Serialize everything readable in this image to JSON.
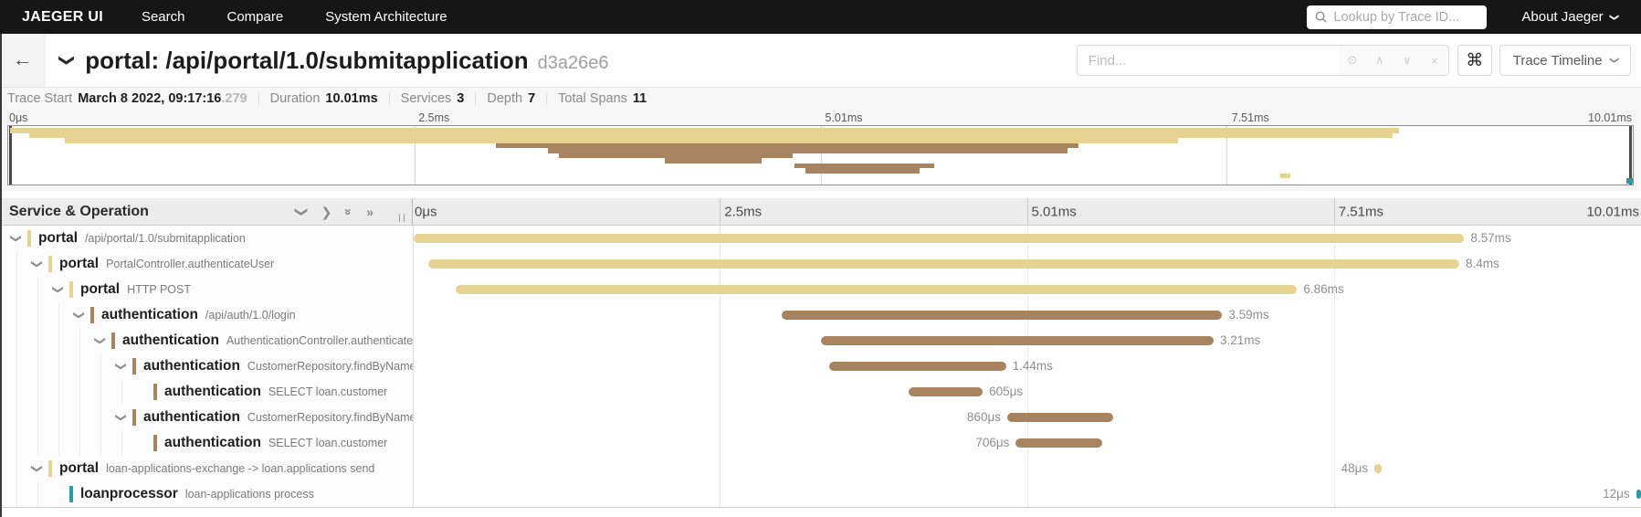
{
  "nav": {
    "brand": "JAEGER UI",
    "items": [
      "Search",
      "Compare",
      "System Architecture"
    ],
    "lookup_placeholder": "Lookup by Trace ID...",
    "about_label": "About Jaeger"
  },
  "header": {
    "title": "portal: /api/portal/1.0/submitapplication",
    "trace_id": "d3a26e6",
    "find_placeholder": "Find...",
    "shortcut_glyph": "⌘",
    "view_select_label": "Trace Timeline"
  },
  "summary": {
    "trace_start_label": "Trace Start",
    "trace_start_value": "March 8 2022, 09:17:16",
    "trace_start_millis": ".279",
    "duration_label": "Duration",
    "duration_value": "10.01ms",
    "services_label": "Services",
    "services_value": "3",
    "depth_label": "Depth",
    "depth_value": "7",
    "total_spans_label": "Total Spans",
    "total_spans_value": "11"
  },
  "timeline": {
    "panel_title": "Service & Operation",
    "ticks": [
      "0μs",
      "2.5ms",
      "5.01ms",
      "7.51ms",
      "10.01ms"
    ]
  },
  "colors": {
    "portal": "#e7d391",
    "authentication": "#a7845f",
    "loanprocessor": "#2e9aa8"
  },
  "spans": {
    "rows": [
      {
        "service": "portal",
        "operation": "/api/portal/1.0/submitapplication",
        "level": 0,
        "has_children": true,
        "color": "portal",
        "start_pct": 0.1,
        "width_pct": 85.5,
        "duration_label": "8.57ms",
        "label_side": "right"
      },
      {
        "service": "portal",
        "operation": "PortalController.authenticateUser",
        "level": 1,
        "has_children": true,
        "color": "portal",
        "start_pct": 1.3,
        "width_pct": 83.9,
        "duration_label": "8.4ms",
        "label_side": "right"
      },
      {
        "service": "portal",
        "operation": "HTTP POST",
        "level": 2,
        "has_children": true,
        "color": "portal",
        "start_pct": 3.5,
        "width_pct": 68.5,
        "duration_label": "6.86ms",
        "label_side": "right"
      },
      {
        "service": "authentication",
        "operation": "/api/auth/1.0/login",
        "level": 3,
        "has_children": true,
        "color": "authentication",
        "start_pct": 30.0,
        "width_pct": 35.9,
        "duration_label": "3.59ms",
        "label_side": "right"
      },
      {
        "service": "authentication",
        "operation": "AuthenticationController.authenticateUser",
        "level": 4,
        "has_children": true,
        "color": "authentication",
        "start_pct": 33.2,
        "width_pct": 32.0,
        "duration_label": "3.21ms",
        "label_side": "right"
      },
      {
        "service": "authentication",
        "operation": "CustomerRepository.findByName",
        "level": 5,
        "has_children": true,
        "color": "authentication",
        "start_pct": 33.9,
        "width_pct": 14.4,
        "duration_label": "1.44ms",
        "label_side": "right"
      },
      {
        "service": "authentication",
        "operation": "SELECT loan.customer",
        "level": 6,
        "has_children": false,
        "color": "authentication",
        "start_pct": 40.4,
        "width_pct": 6.0,
        "duration_label": "605μs",
        "label_side": "right"
      },
      {
        "service": "authentication",
        "operation": "CustomerRepository.findByName",
        "level": 5,
        "has_children": true,
        "color": "authentication",
        "start_pct": 48.4,
        "width_pct": 8.6,
        "duration_label": "860μs",
        "label_side": "left"
      },
      {
        "service": "authentication",
        "operation": "SELECT loan.customer",
        "level": 6,
        "has_children": false,
        "color": "authentication",
        "start_pct": 49.1,
        "width_pct": 7.0,
        "duration_label": "706μs",
        "label_side": "left"
      },
      {
        "service": "portal",
        "operation": "loan-applications-exchange -> loan.applications send",
        "level": 1,
        "has_children": true,
        "color": "portal",
        "start_pct": 78.3,
        "width_pct": 0.6,
        "duration_label": "48μs",
        "label_side": "left"
      },
      {
        "service": "loanprocessor",
        "operation": "loan-applications process",
        "level": 2,
        "has_children": false,
        "color": "loanprocessor",
        "start_pct": 99.6,
        "width_pct": 0.4,
        "duration_label": "12μs",
        "label_side": "left"
      }
    ]
  }
}
